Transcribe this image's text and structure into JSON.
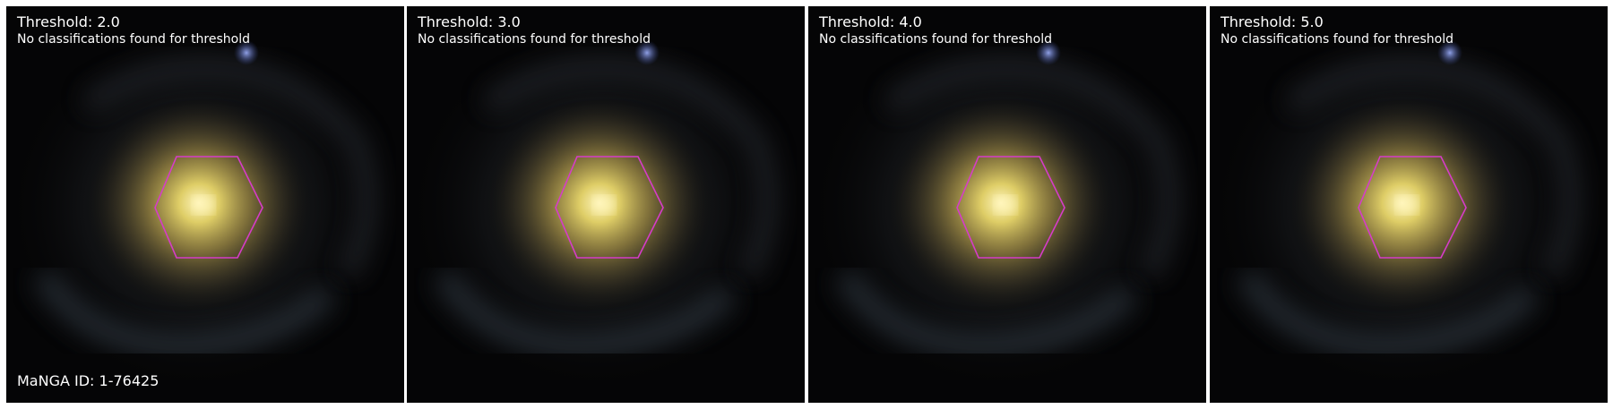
{
  "manga_id": "MaNGA ID: 1-76425",
  "hexagon_color": "#d63cc8",
  "panels": [
    {
      "threshold": "Threshold: 2.0",
      "message": "No classifications found for threshold"
    },
    {
      "threshold": "Threshold: 3.0",
      "message": "No classifications found for threshold"
    },
    {
      "threshold": "Threshold: 4.0",
      "message": "No classifications found for threshold"
    },
    {
      "threshold": "Threshold: 5.0",
      "message": "No classifications found for threshold"
    }
  ]
}
